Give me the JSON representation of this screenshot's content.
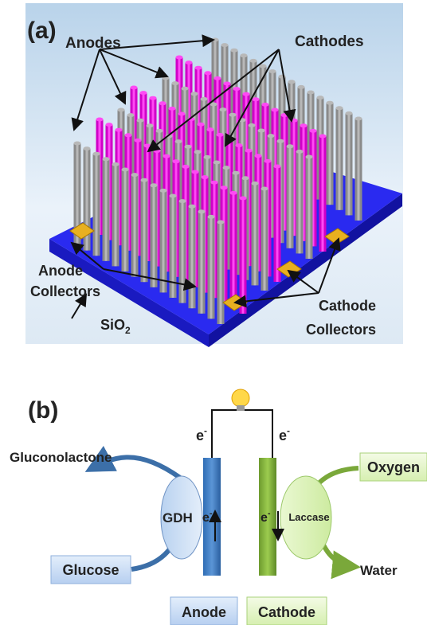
{
  "panel_a": {
    "label": "(a)",
    "anodes": "Anodes",
    "cathodes": "Cathodes",
    "anode_collectors": [
      "Anode",
      "Collectors"
    ],
    "substrate": {
      "base": "SiO",
      "sub": "2"
    },
    "cathode_collectors": [
      "Cathode",
      "Collectors"
    ]
  },
  "panel_b": {
    "label": "(b)",
    "electron": {
      "base": "e",
      "sup": "-"
    },
    "product_left": "Gluconolactone",
    "enzyme_left": "GDH",
    "substrate_left": "Glucose",
    "substrate_right": "Oxygen",
    "enzyme_right": "Laccase",
    "product_right": "Water",
    "anode": "Anode",
    "cathode": "Cathode"
  }
}
